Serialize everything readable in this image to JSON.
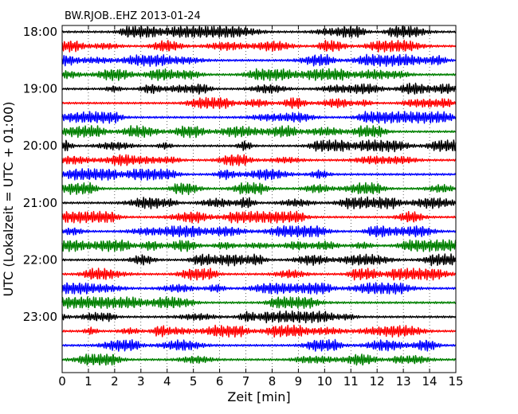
{
  "chart_data": {
    "type": "line",
    "title": "BW.RJOB..EHZ 2013-01-24",
    "xlabel": "Zeit  [min]",
    "ylabel": "UTC (Lokalzeit = UTC + 01:00)",
    "xlim": [
      0,
      15
    ],
    "x_ticks": [
      0,
      1,
      2,
      3,
      4,
      5,
      6,
      7,
      8,
      9,
      10,
      11,
      12,
      13,
      14,
      15
    ],
    "x_tick_labels": [
      "0",
      "1",
      "2",
      "3",
      "4",
      "5",
      "6",
      "7",
      "8",
      "9",
      "10",
      "11",
      "12",
      "13",
      "14",
      "15"
    ],
    "y_tick_labels": [
      "18:00",
      "19:00",
      "20:00",
      "21:00",
      "22:00",
      "23:00"
    ],
    "trace_start_times": [
      "18:00",
      "18:15",
      "18:30",
      "18:45",
      "19:00",
      "19:15",
      "19:30",
      "19:45",
      "20:00",
      "20:15",
      "20:30",
      "20:45",
      "21:00",
      "21:15",
      "21:30",
      "21:45",
      "22:00",
      "22:15",
      "22:30",
      "22:45",
      "23:00",
      "23:15",
      "23:30",
      "23:45"
    ],
    "trace_colors": [
      "#000000",
      "#ff0000",
      "#0000ff",
      "#008000"
    ],
    "grid": {
      "x": "dotted",
      "y": "none"
    }
  }
}
